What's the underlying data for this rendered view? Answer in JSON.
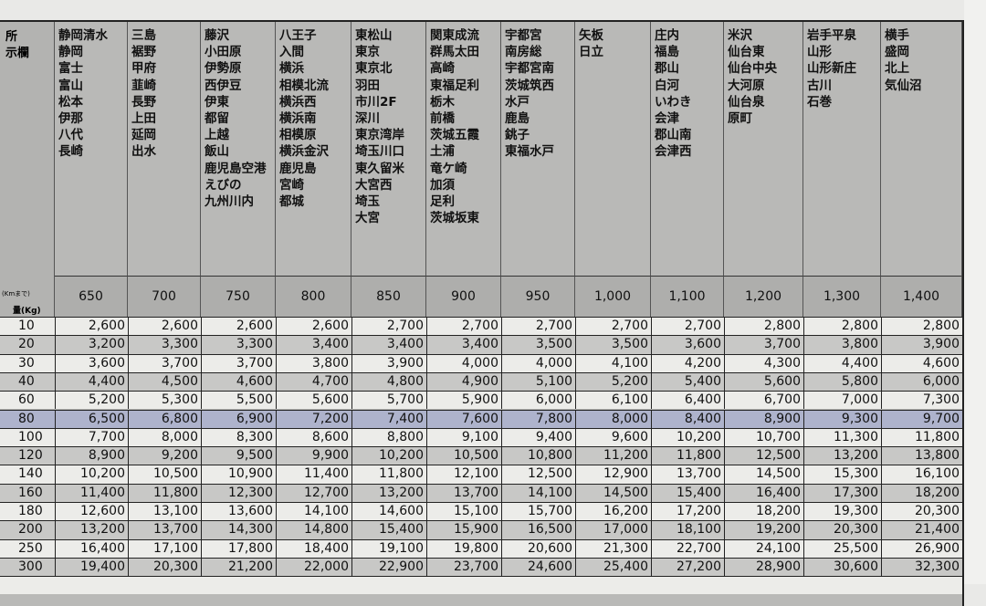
{
  "corner": {
    "office_label_line1": "所",
    "office_label_line2": "示欄",
    "distance_label": "(Kmまで)",
    "weight_label": "量(Kg)"
  },
  "columns": [
    {
      "km": "650",
      "offices": [
        "静岡清水",
        "静岡",
        "富士",
        "富山",
        "松本",
        "伊那",
        "八代",
        "長崎"
      ]
    },
    {
      "km": "700",
      "offices": [
        "三島",
        "裾野",
        "甲府",
        "韮崎",
        "長野",
        "上田",
        "延岡",
        "出水"
      ]
    },
    {
      "km": "750",
      "offices": [
        "藤沢",
        "小田原",
        "伊勢原",
        "西伊豆",
        "伊東",
        "都留",
        "上越",
        "飯山",
        "鹿児島空港",
        "えびの",
        "九州川内"
      ]
    },
    {
      "km": "800",
      "offices": [
        "八王子",
        "入間",
        "横浜",
        "相模北流",
        "横浜西",
        "横浜南",
        "相模原",
        "横浜金沢",
        "鹿児島",
        "宮崎",
        "都城"
      ]
    },
    {
      "km": "850",
      "offices": [
        "東松山",
        "東京",
        "東京北",
        "羽田",
        "市川2F",
        "深川",
        "東京湾岸",
        "埼玉川口",
        "東久留米",
        "大宮西",
        "埼玉",
        "大宮"
      ]
    },
    {
      "km": "900",
      "offices": [
        "関東成流",
        "群馬太田",
        "高崎",
        "東福足利",
        "栃木",
        "前橋",
        "茨城五霞",
        "土浦",
        "竜ケ崎",
        "加須",
        "足利",
        "茨城坂東"
      ]
    },
    {
      "km": "950",
      "offices": [
        "宇都宮",
        "南房総",
        "宇都宮南",
        "茨城筑西",
        "水戸",
        "鹿島",
        "銚子",
        "東福水戸"
      ]
    },
    {
      "km": "1,000",
      "offices": [
        "矢板",
        "日立"
      ]
    },
    {
      "km": "1,100",
      "offices": [
        "庄内",
        "福島",
        "郡山",
        "白河",
        "いわき",
        "会津",
        "郡山南",
        "会津西"
      ]
    },
    {
      "km": "1,200",
      "offices": [
        "米沢",
        "仙台東",
        "仙台中央",
        "大河原",
        "仙台泉",
        "原町"
      ]
    },
    {
      "km": "1,300",
      "offices": [
        "岩手平泉",
        "山形",
        "山形新庄",
        "古川",
        "石巻"
      ]
    },
    {
      "km": "1,400",
      "offices": [
        "横手",
        "盛岡",
        "北上",
        "気仙沼"
      ]
    }
  ],
  "rows": [
    {
      "kg": "10",
      "values": [
        "2,600",
        "2,600",
        "2,600",
        "2,600",
        "2,700",
        "2,700",
        "2,700",
        "2,700",
        "2,700",
        "2,800",
        "2,800",
        "2,800"
      ]
    },
    {
      "kg": "20",
      "values": [
        "3,200",
        "3,300",
        "3,300",
        "3,400",
        "3,400",
        "3,400",
        "3,500",
        "3,500",
        "3,600",
        "3,700",
        "3,800",
        "3,900"
      ]
    },
    {
      "kg": "30",
      "values": [
        "3,600",
        "3,700",
        "3,700",
        "3,800",
        "3,900",
        "4,000",
        "4,000",
        "4,100",
        "4,200",
        "4,300",
        "4,400",
        "4,600"
      ]
    },
    {
      "kg": "40",
      "values": [
        "4,400",
        "4,500",
        "4,600",
        "4,700",
        "4,800",
        "4,900",
        "5,100",
        "5,200",
        "5,400",
        "5,600",
        "5,800",
        "6,000"
      ]
    },
    {
      "kg": "60",
      "values": [
        "5,200",
        "5,300",
        "5,500",
        "5,600",
        "5,700",
        "5,900",
        "6,000",
        "6,100",
        "6,400",
        "6,700",
        "7,000",
        "7,300"
      ]
    },
    {
      "kg": "80",
      "values": [
        "6,500",
        "6,800",
        "6,900",
        "7,200",
        "7,400",
        "7,600",
        "7,800",
        "8,000",
        "8,400",
        "8,900",
        "9,300",
        "9,700"
      ],
      "highlighted": true
    },
    {
      "kg": "100",
      "values": [
        "7,700",
        "8,000",
        "8,300",
        "8,600",
        "8,800",
        "9,100",
        "9,400",
        "9,600",
        "10,200",
        "10,700",
        "11,300",
        "11,800"
      ]
    },
    {
      "kg": "120",
      "values": [
        "8,900",
        "9,200",
        "9,500",
        "9,900",
        "10,200",
        "10,500",
        "10,800",
        "11,200",
        "11,800",
        "12,500",
        "13,200",
        "13,800"
      ]
    },
    {
      "kg": "140",
      "values": [
        "10,200",
        "10,500",
        "10,900",
        "11,400",
        "11,800",
        "12,100",
        "12,500",
        "12,900",
        "13,700",
        "14,500",
        "15,300",
        "16,100"
      ]
    },
    {
      "kg": "160",
      "values": [
        "11,400",
        "11,800",
        "12,300",
        "12,700",
        "13,200",
        "13,700",
        "14,100",
        "14,500",
        "15,400",
        "16,400",
        "17,300",
        "18,200"
      ]
    },
    {
      "kg": "180",
      "values": [
        "12,600",
        "13,100",
        "13,600",
        "14,100",
        "14,600",
        "15,100",
        "15,700",
        "16,200",
        "17,200",
        "18,200",
        "19,300",
        "20,300"
      ]
    },
    {
      "kg": "200",
      "values": [
        "13,200",
        "13,700",
        "14,300",
        "14,800",
        "15,400",
        "15,900",
        "16,500",
        "17,000",
        "18,100",
        "19,200",
        "20,300",
        "21,400"
      ]
    },
    {
      "kg": "250",
      "values": [
        "16,400",
        "17,100",
        "17,800",
        "18,400",
        "19,100",
        "19,800",
        "20,600",
        "21,300",
        "22,700",
        "24,100",
        "25,500",
        "26,900"
      ]
    },
    {
      "kg": "300",
      "values": [
        "19,400",
        "20,300",
        "21,200",
        "22,000",
        "22,900",
        "23,700",
        "24,600",
        "25,400",
        "27,200",
        "28,900",
        "30,600",
        "32,300"
      ]
    }
  ],
  "colors": {
    "highlight_row": "#aeb3cc",
    "header_bg": "#b9b9b7"
  }
}
